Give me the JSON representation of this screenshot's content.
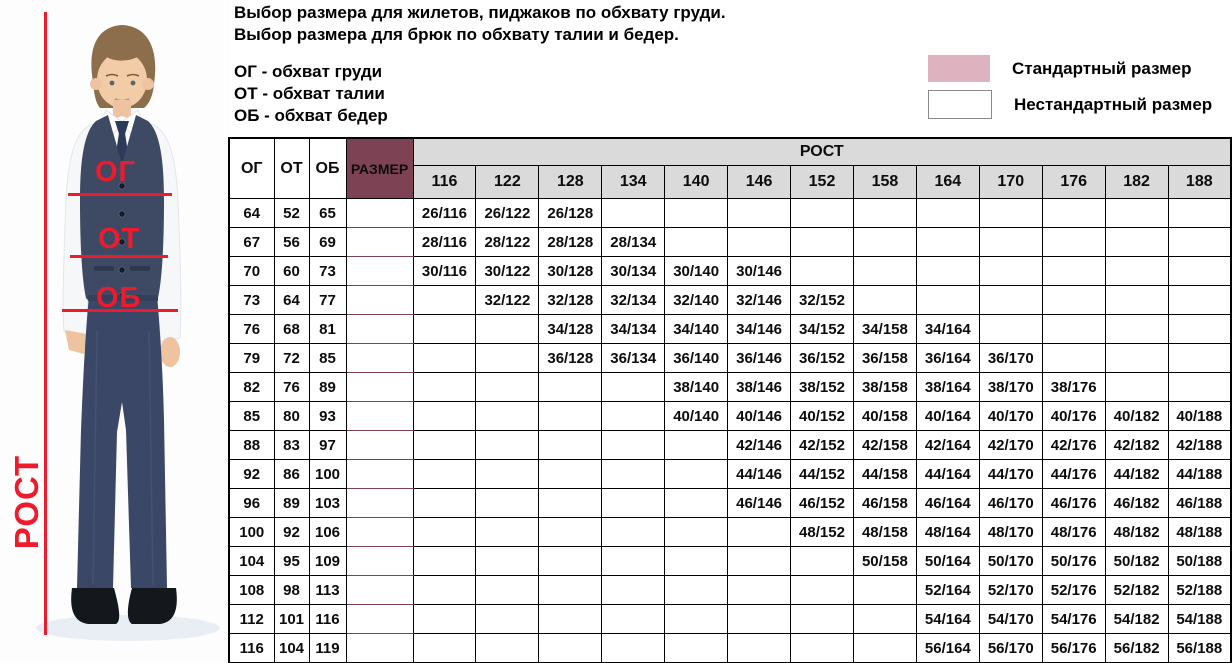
{
  "header": {
    "title_line1": "Выбор размера для жилетов, пиджаков по обхвату груди.",
    "title_line2": "Выбор размера для брюк по обхвату талии и бедер.",
    "definitions": [
      "ОГ - обхват груди",
      "ОТ - обхват талии",
      "ОБ - обхват бедер"
    ]
  },
  "figure": {
    "height_label": "РОСТ",
    "chest_label": "ОГ",
    "waist_label": "ОТ",
    "hips_label": "ОБ"
  },
  "colors": {
    "standard_cell": "#DFB2C0",
    "size_column": "#7D4254",
    "header_gray": "#DADADA",
    "annotation_red": "#EE1B2D"
  },
  "chart_data": {
    "type": "table",
    "title": "Выбор размера для жилетов, пиджаков по обхвату груди. Выбор размера для брюк по обхвату талии и бедер.",
    "col_labels": {
      "og": "ОГ",
      "ot": "ОТ",
      "ob": "ОБ",
      "size": "РАЗМЕР",
      "rost": "РОСТ"
    },
    "heights": [
      "116",
      "122",
      "128",
      "134",
      "140",
      "146",
      "152",
      "158",
      "164",
      "170",
      "176",
      "182",
      "188"
    ],
    "legend": [
      {
        "label": "Стандартный размер",
        "color": "#DFB2C0"
      },
      {
        "label": "Нестандартный размер",
        "color": "#FFFFFF"
      }
    ],
    "rows": [
      {
        "og": "64",
        "ot": "52",
        "ob": "65",
        "size": "26",
        "cells": [
          [
            "116",
            "26/116",
            "std"
          ],
          [
            "122",
            "26/122",
            "std"
          ],
          [
            "128",
            "26/128",
            "alt"
          ]
        ]
      },
      {
        "og": "67",
        "ot": "56",
        "ob": "69",
        "size": "28",
        "cells": [
          [
            "116",
            "28/116",
            "std"
          ],
          [
            "122",
            "28/122",
            "std"
          ],
          [
            "128",
            "28/128",
            "std"
          ],
          [
            "134",
            "28/134",
            "alt"
          ]
        ]
      },
      {
        "og": "70",
        "ot": "60",
        "ob": "73",
        "size": "30",
        "cells": [
          [
            "116",
            "30/116",
            "alt"
          ],
          [
            "122",
            "30/122",
            "std"
          ],
          [
            "128",
            "30/128",
            "std"
          ],
          [
            "134",
            "30/134",
            "std"
          ],
          [
            "140",
            "30/140",
            "std"
          ],
          [
            "146",
            "30/146",
            "alt"
          ]
        ]
      },
      {
        "og": "73",
        "ot": "64",
        "ob": "77",
        "size": "32",
        "cells": [
          [
            "122",
            "32/122",
            "alt"
          ],
          [
            "128",
            "32/128",
            "std"
          ],
          [
            "134",
            "32/134",
            "std"
          ],
          [
            "140",
            "32/140",
            "std"
          ],
          [
            "146",
            "32/146",
            "std"
          ],
          [
            "152",
            "32/152",
            "alt"
          ]
        ]
      },
      {
        "og": "76",
        "ot": "68",
        "ob": "81",
        "size": "34",
        "cells": [
          [
            "128",
            "34/128",
            "alt"
          ],
          [
            "134",
            "34/134",
            "std"
          ],
          [
            "140",
            "34/140",
            "std"
          ],
          [
            "146",
            "34/146",
            "std"
          ],
          [
            "152",
            "34/152",
            "std"
          ],
          [
            "158",
            "34/158",
            "alt"
          ],
          [
            "164",
            "34/164",
            "alt"
          ]
        ]
      },
      {
        "og": "79",
        "ot": "72",
        "ob": "85",
        "size": "36",
        "cells": [
          [
            "128",
            "36/128",
            "alt"
          ],
          [
            "134",
            "36/134",
            "alt"
          ],
          [
            "140",
            "36/140",
            "std"
          ],
          [
            "146",
            "36/146",
            "std"
          ],
          [
            "152",
            "36/152",
            "std"
          ],
          [
            "158",
            "36/158",
            "std"
          ],
          [
            "164",
            "36/164",
            "alt"
          ],
          [
            "170",
            "36/170",
            "alt"
          ]
        ]
      },
      {
        "og": "82",
        "ot": "76",
        "ob": "89",
        "size": "38",
        "cells": [
          [
            "140",
            "38/140",
            "alt"
          ],
          [
            "146",
            "38/146",
            "std"
          ],
          [
            "152",
            "38/152",
            "std"
          ],
          [
            "158",
            "38/158",
            "std"
          ],
          [
            "164",
            "38/164",
            "std"
          ],
          [
            "170",
            "38/170",
            "alt"
          ],
          [
            "176",
            "38/176",
            "alt"
          ]
        ]
      },
      {
        "og": "85",
        "ot": "80",
        "ob": "93",
        "size": "40",
        "cells": [
          [
            "140",
            "40/140",
            "alt"
          ],
          [
            "146",
            "40/146",
            "alt"
          ],
          [
            "152",
            "40/152",
            "std"
          ],
          [
            "158",
            "40/158",
            "std"
          ],
          [
            "164",
            "40/164",
            "std"
          ],
          [
            "170",
            "40/170",
            "std"
          ],
          [
            "176",
            "40/176",
            "std"
          ],
          [
            "182",
            "40/182",
            "alt"
          ],
          [
            "188",
            "40/188",
            "alt"
          ]
        ]
      },
      {
        "og": "88",
        "ot": "83",
        "ob": "97",
        "size": "42",
        "cells": [
          [
            "146",
            "42/146",
            "alt"
          ],
          [
            "152",
            "42/152",
            "std"
          ],
          [
            "158",
            "42/158",
            "std"
          ],
          [
            "164",
            "42/164",
            "std"
          ],
          [
            "170",
            "42/170",
            "std"
          ],
          [
            "176",
            "42/176",
            "std"
          ],
          [
            "182",
            "42/182",
            "alt"
          ],
          [
            "188",
            "42/188",
            "alt"
          ]
        ]
      },
      {
        "og": "92",
        "ot": "86",
        "ob": "100",
        "size": "44",
        "cells": [
          [
            "146",
            "44/146",
            "alt"
          ],
          [
            "152",
            "44/152",
            "alt"
          ],
          [
            "158",
            "44/158",
            "std"
          ],
          [
            "164",
            "44/164",
            "std"
          ],
          [
            "170",
            "44/170",
            "std"
          ],
          [
            "176",
            "44/176",
            "std"
          ],
          [
            "182",
            "44/182",
            "std"
          ],
          [
            "188",
            "44/188",
            "alt"
          ]
        ]
      },
      {
        "og": "96",
        "ot": "89",
        "ob": "103",
        "size": "46",
        "cells": [
          [
            "146",
            "46/146",
            "alt"
          ],
          [
            "152",
            "46/152",
            "alt"
          ],
          [
            "158",
            "46/158",
            "std"
          ],
          [
            "164",
            "46/164",
            "std"
          ],
          [
            "170",
            "46/170",
            "std"
          ],
          [
            "176",
            "46/176",
            "std"
          ],
          [
            "182",
            "46/182",
            "std"
          ],
          [
            "188",
            "46/188",
            "alt"
          ]
        ]
      },
      {
        "og": "100",
        "ot": "92",
        "ob": "106",
        "size": "48",
        "cells": [
          [
            "152",
            "48/152",
            "alt"
          ],
          [
            "158",
            "48/158",
            "alt"
          ],
          [
            "164",
            "48/164",
            "std"
          ],
          [
            "170",
            "48/170",
            "std"
          ],
          [
            "176",
            "48/176",
            "std"
          ],
          [
            "182",
            "48/182",
            "std"
          ],
          [
            "188",
            "48/188",
            "std"
          ]
        ]
      },
      {
        "og": "104",
        "ot": "95",
        "ob": "109",
        "size": "50",
        "cells": [
          [
            "158",
            "50/158",
            "alt"
          ],
          [
            "164",
            "50/164",
            "std"
          ],
          [
            "170",
            "50/170",
            "std"
          ],
          [
            "176",
            "50/176",
            "std"
          ],
          [
            "182",
            "50/182",
            "std"
          ],
          [
            "188",
            "50/188",
            "std"
          ]
        ]
      },
      {
        "og": "108",
        "ot": "98",
        "ob": "113",
        "size": "52",
        "cells": [
          [
            "164",
            "52/164",
            "alt"
          ],
          [
            "170",
            "52/170",
            "std"
          ],
          [
            "176",
            "52/176",
            "std"
          ],
          [
            "182",
            "52/182",
            "std"
          ],
          [
            "188",
            "52/188",
            "std"
          ]
        ]
      },
      {
        "og": "112",
        "ot": "101",
        "ob": "116",
        "size": "54",
        "cells": [
          [
            "164",
            "54/164",
            "alt"
          ],
          [
            "170",
            "54/170",
            "alt"
          ],
          [
            "176",
            "54/176",
            "std"
          ],
          [
            "182",
            "54/182",
            "std"
          ],
          [
            "188",
            "54/188",
            "alt"
          ]
        ]
      },
      {
        "og": "116",
        "ot": "104",
        "ob": "119",
        "size": "56",
        "cells": [
          [
            "164",
            "56/164",
            "alt"
          ],
          [
            "170",
            "56/170",
            "alt"
          ],
          [
            "176",
            "56/176",
            "alt"
          ],
          [
            "182",
            "56/182",
            "alt"
          ],
          [
            "188",
            "56/188",
            "alt"
          ]
        ]
      }
    ]
  }
}
